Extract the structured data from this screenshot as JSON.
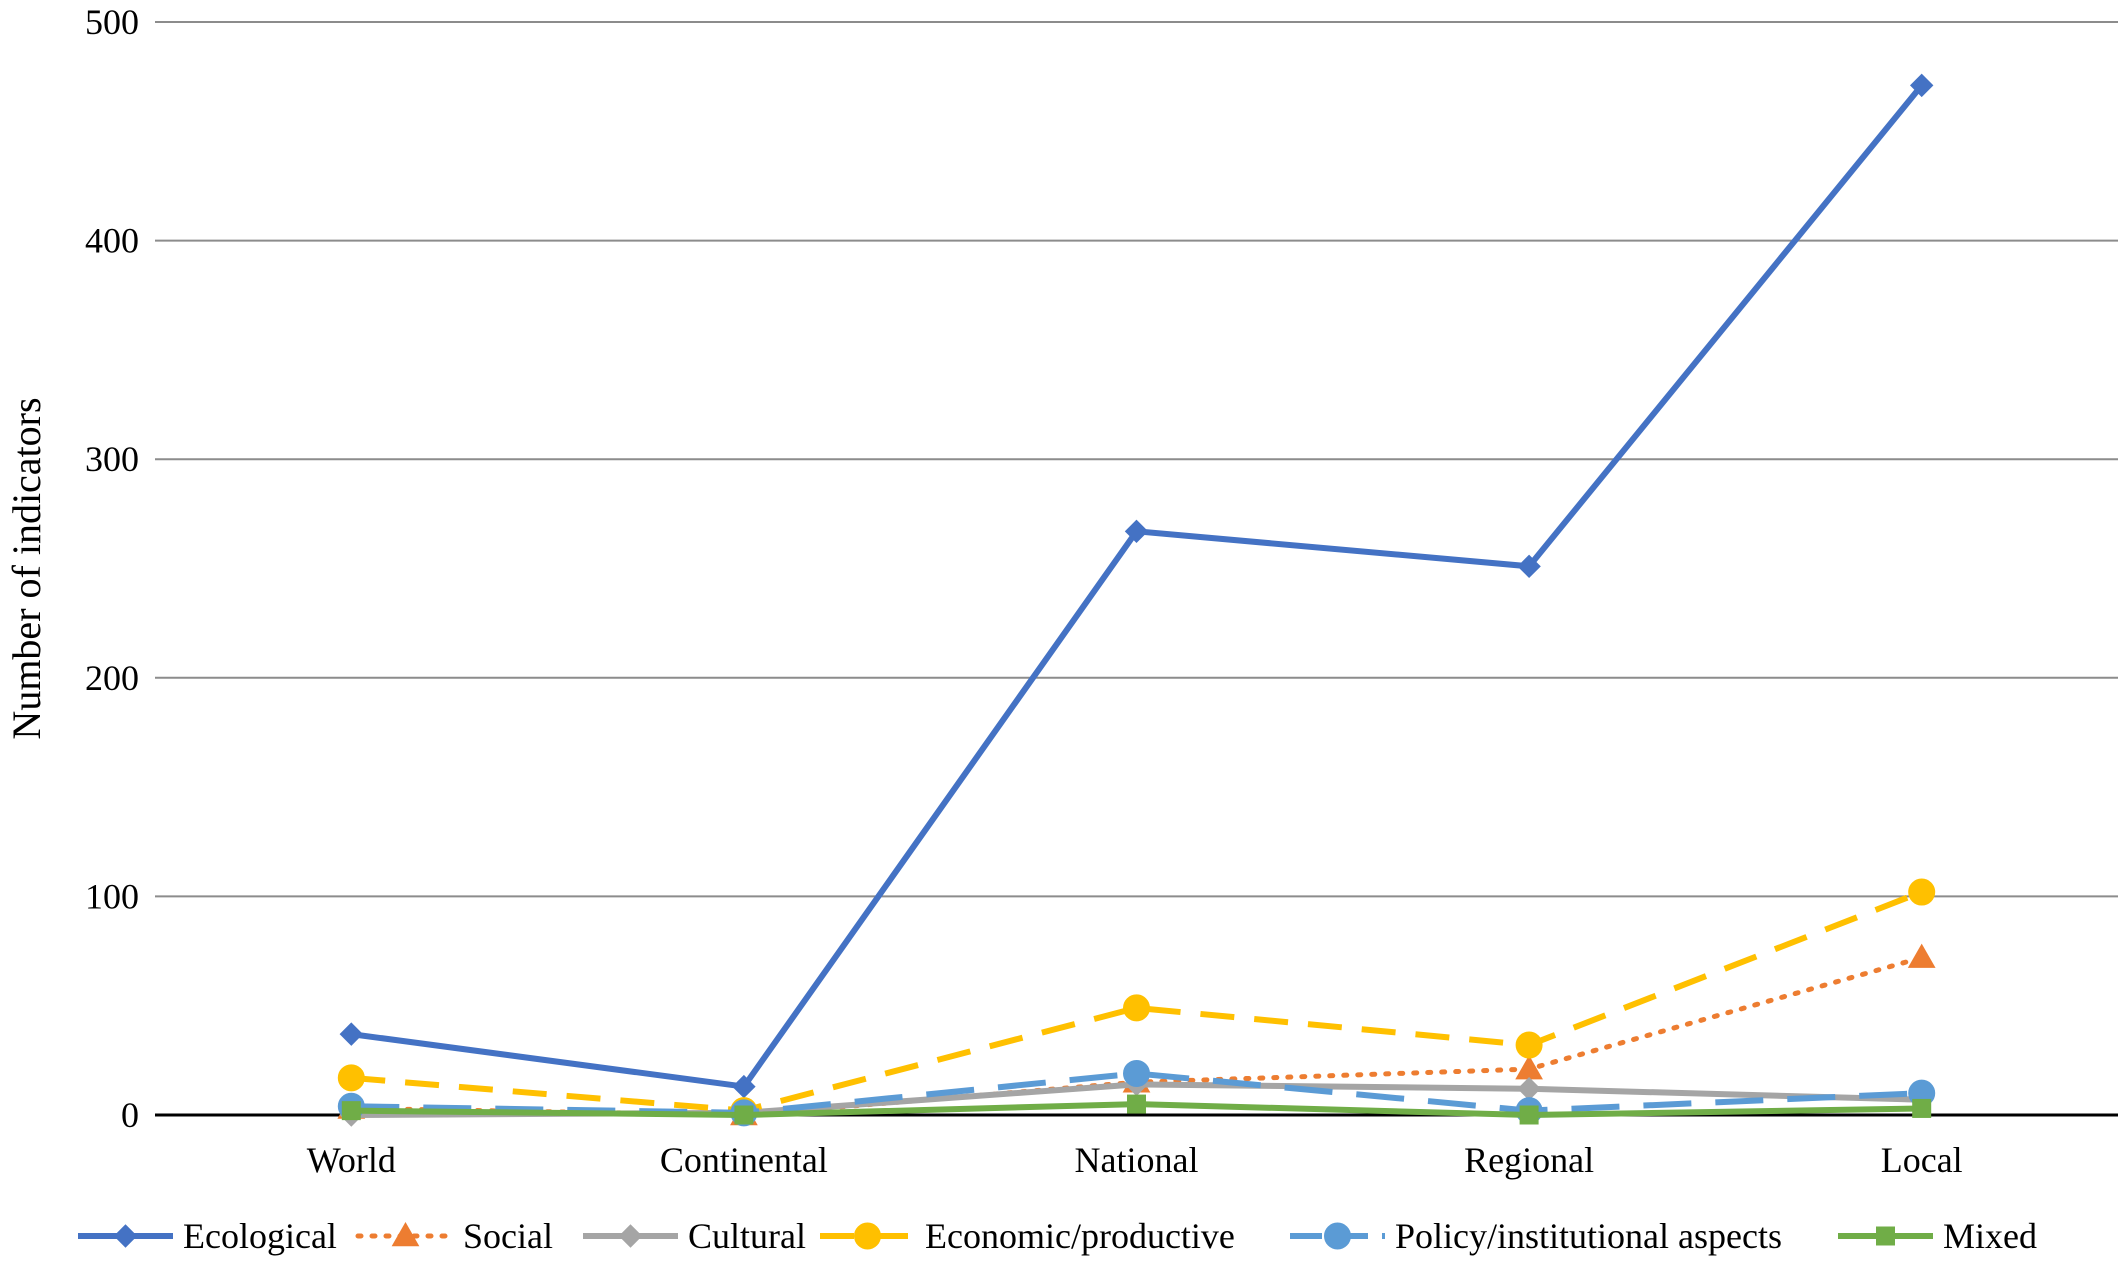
{
  "chart_data": {
    "type": "line",
    "title": "",
    "xlabel": "",
    "ylabel": "Number of indicators",
    "ylim": [
      0,
      500
    ],
    "yticks": [
      0,
      100,
      200,
      300,
      400,
      500
    ],
    "grid": true,
    "legend_position": "bottom",
    "categories": [
      "World",
      "Continental",
      "National",
      "Regional",
      "Local"
    ],
    "series": [
      {
        "name": "Ecological",
        "values": [
          37,
          13,
          267,
          251,
          471
        ],
        "color": "#4472C4",
        "line_style": "solid",
        "marker": "diamond"
      },
      {
        "name": "Social",
        "values": [
          3,
          0,
          15,
          21,
          72
        ],
        "color": "#ED7D31",
        "line_style": "dotted",
        "marker": "triangle"
      },
      {
        "name": "Cultural",
        "values": [
          0,
          1,
          14,
          12,
          7
        ],
        "color": "#A5A5A5",
        "line_style": "solid",
        "marker": "diamond"
      },
      {
        "name": "Economic/productive",
        "values": [
          17,
          2,
          49,
          32,
          102
        ],
        "color": "#FFC000",
        "line_style": "dashed",
        "marker": "circle"
      },
      {
        "name": "Policy/institutional aspects",
        "values": [
          4,
          1,
          19,
          2,
          10
        ],
        "color": "#5B9BD5",
        "line_style": "longdash",
        "marker": "circle"
      },
      {
        "name": "Mixed",
        "values": [
          2,
          0,
          5,
          0,
          3
        ],
        "color": "#70AD47",
        "line_style": "solid",
        "marker": "square"
      }
    ]
  }
}
